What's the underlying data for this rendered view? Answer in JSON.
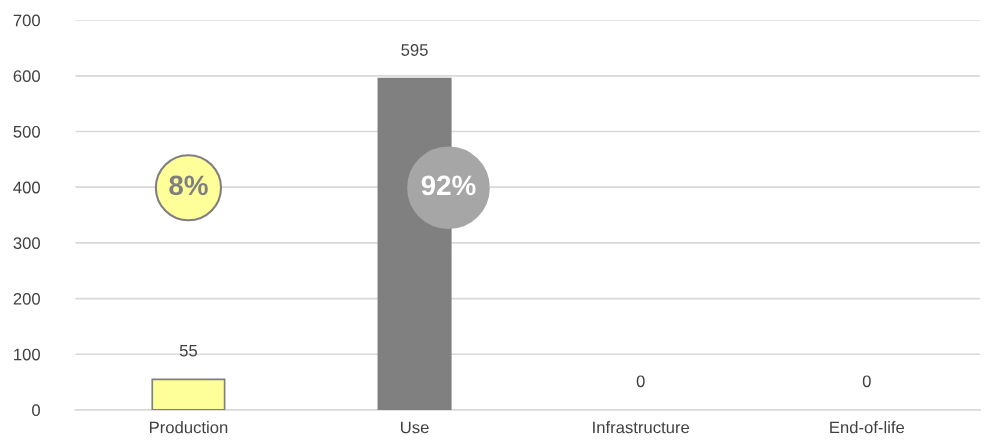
{
  "chart_data": {
    "type": "bar",
    "categories": [
      "Production",
      "Use",
      "Infrastructure",
      "End-of-life"
    ],
    "values": [
      55,
      595,
      0,
      0
    ],
    "colors": [
      "#ffff99",
      "#808080",
      "#808080",
      "#808080"
    ],
    "data_labels": true,
    "ylim": [
      0,
      700
    ],
    "yticks": [
      0,
      100,
      200,
      300,
      400,
      500,
      600,
      700
    ],
    "grid": "y",
    "annotations": [
      "8%",
      "92%"
    ]
  }
}
